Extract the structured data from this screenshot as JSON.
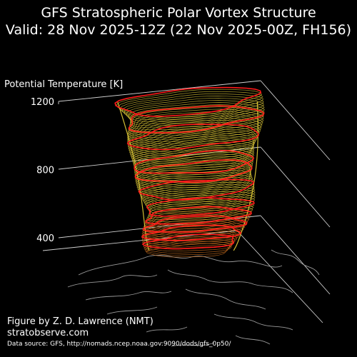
{
  "title": "GFS Stratospheric Polar Vortex Structure",
  "subtitle": "Valid: 28 Nov 2025-12Z  (22 Nov 2025-00Z, FH156)",
  "credit": {
    "author": "Figure by Z. D. Lawrence (NMT)",
    "site": "stratobserve.com",
    "source": "Data source: GFS, http://nomads.ncep.noaa.gov:9090/dods/gfs_0p50/"
  },
  "colors": {
    "background": "#000000",
    "isentrope_highlight": "#ff1a1a",
    "isentrope": "#e8d23a",
    "isentrope_low": "#e07a20",
    "coastline": "#9a9a9a",
    "grid": "#d0d0d0"
  },
  "chart_data": {
    "type": "3d-surface",
    "zlabel": "Potential Temperature [K]",
    "zticks": [
      400,
      800,
      1200
    ],
    "zlim": [
      250,
      1250
    ],
    "grid": true,
    "vortex_levels": {
      "min": 350,
      "max": 1200,
      "highlighted": [
        400,
        450,
        500,
        550,
        600,
        700,
        800,
        850,
        1000,
        1100,
        1200
      ]
    }
  }
}
